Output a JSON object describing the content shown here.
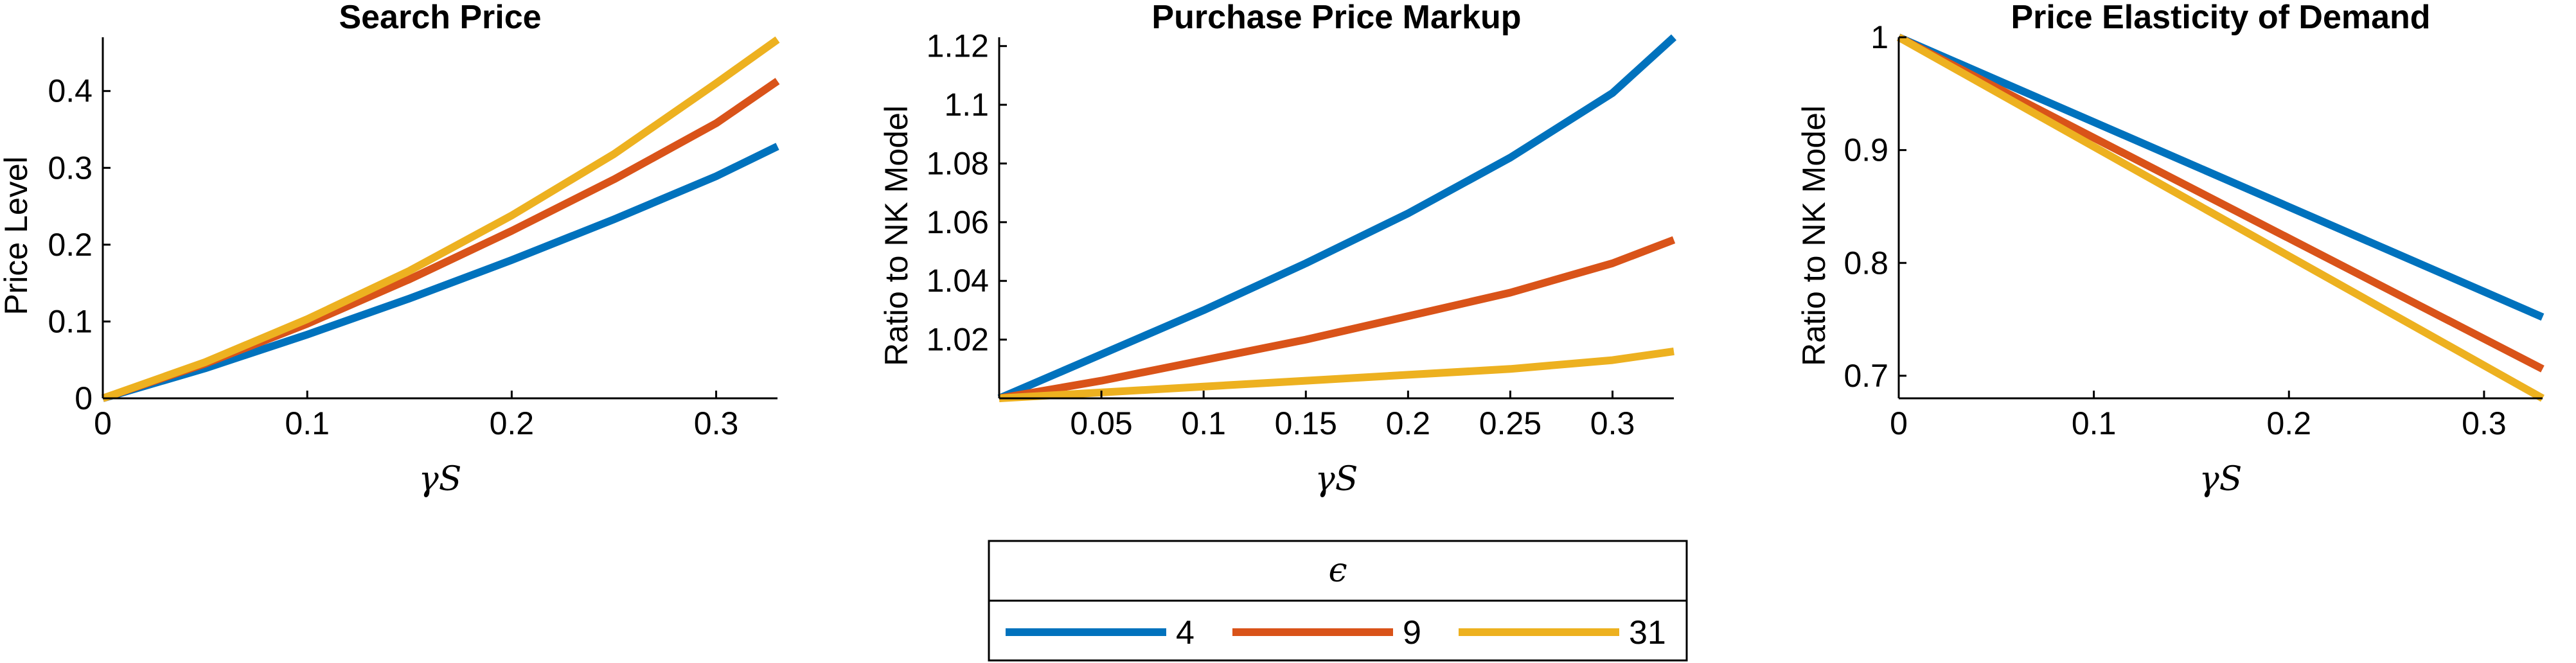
{
  "colors": {
    "e4": "#0072BD",
    "e9": "#D95319",
    "e31": "#EDB120"
  },
  "legend": {
    "title": "ϵ",
    "entries": [
      {
        "label": "4",
        "color": "#0072BD"
      },
      {
        "label": "9",
        "color": "#D95319"
      },
      {
        "label": "31",
        "color": "#EDB120"
      }
    ]
  },
  "chart_data": [
    {
      "type": "line",
      "title": "Search Price",
      "xlabel": "γS",
      "ylabel": "Price Level",
      "xlim": [
        0,
        0.33
      ],
      "ylim": [
        0,
        0.47
      ],
      "xticks": [
        0,
        0.1,
        0.2,
        0.3
      ],
      "xtick_labels": [
        "0",
        "0.1",
        "0.2",
        "0.3"
      ],
      "yticks": [
        0,
        0.1,
        0.2,
        0.3,
        0.4
      ],
      "ytick_labels": [
        "0",
        "0.1",
        "0.2",
        "0.3",
        "0.4"
      ],
      "x": [
        0,
        0.05,
        0.1,
        0.15,
        0.2,
        0.25,
        0.3,
        0.33
      ],
      "series": [
        {
          "name": "4",
          "color": "#0072BD",
          "values": [
            0,
            0.039,
            0.083,
            0.13,
            0.18,
            0.233,
            0.289,
            0.328
          ]
        },
        {
          "name": "9",
          "color": "#D95319",
          "values": [
            0,
            0.045,
            0.097,
            0.155,
            0.218,
            0.285,
            0.358,
            0.413
          ]
        },
        {
          "name": "31",
          "color": "#EDB120",
          "values": [
            0,
            0.047,
            0.103,
            0.166,
            0.238,
            0.318,
            0.41,
            0.467
          ]
        }
      ]
    },
    {
      "type": "line",
      "title": "Purchase Price Markup",
      "xlabel": "γS",
      "ylabel": "Ratio to NK Model",
      "xlim": [
        0,
        0.33
      ],
      "ylim": [
        1.0,
        1.123
      ],
      "xticks": [
        0.05,
        0.1,
        0.15,
        0.2,
        0.25,
        0.3
      ],
      "xtick_labels": [
        "0.05",
        "0.1",
        "0.15",
        "0.2",
        "0.25",
        "0.3"
      ],
      "yticks": [
        1.02,
        1.04,
        1.06,
        1.08,
        1.1,
        1.12
      ],
      "ytick_labels": [
        "1.02",
        "1.04",
        "1.06",
        "1.08",
        "1.1",
        "1.12"
      ],
      "x": [
        0,
        0.05,
        0.1,
        0.15,
        0.2,
        0.25,
        0.3,
        0.33
      ],
      "series": [
        {
          "name": "4",
          "color": "#0072BD",
          "values": [
            1.0,
            1.015,
            1.03,
            1.046,
            1.063,
            1.082,
            1.104,
            1.123
          ]
        },
        {
          "name": "9",
          "color": "#D95319",
          "values": [
            1.0,
            1.006,
            1.013,
            1.02,
            1.028,
            1.036,
            1.046,
            1.054
          ]
        },
        {
          "name": "31",
          "color": "#EDB120",
          "values": [
            1.0,
            1.002,
            1.004,
            1.006,
            1.008,
            1.01,
            1.013,
            1.016
          ]
        }
      ]
    },
    {
      "type": "line",
      "title": "Price Elasticity of Demand",
      "xlabel": "γS",
      "ylabel": "Ratio to NK Model",
      "xlim": [
        0,
        0.33
      ],
      "ylim": [
        0.68,
        1.0
      ],
      "xticks": [
        0,
        0.1,
        0.2,
        0.3
      ],
      "xtick_labels": [
        "0",
        "0.1",
        "0.2",
        "0.3"
      ],
      "yticks": [
        0.7,
        0.8,
        0.9,
        1.0
      ],
      "ytick_labels": [
        "0.7",
        "0.8",
        "0.9",
        "1"
      ],
      "x": [
        0,
        0.33
      ],
      "series": [
        {
          "name": "4",
          "color": "#0072BD",
          "values": [
            1.0,
            0.752
          ]
        },
        {
          "name": "9",
          "color": "#D95319",
          "values": [
            1.0,
            0.706
          ]
        },
        {
          "name": "31",
          "color": "#EDB120",
          "values": [
            1.0,
            0.68
          ]
        }
      ]
    }
  ]
}
